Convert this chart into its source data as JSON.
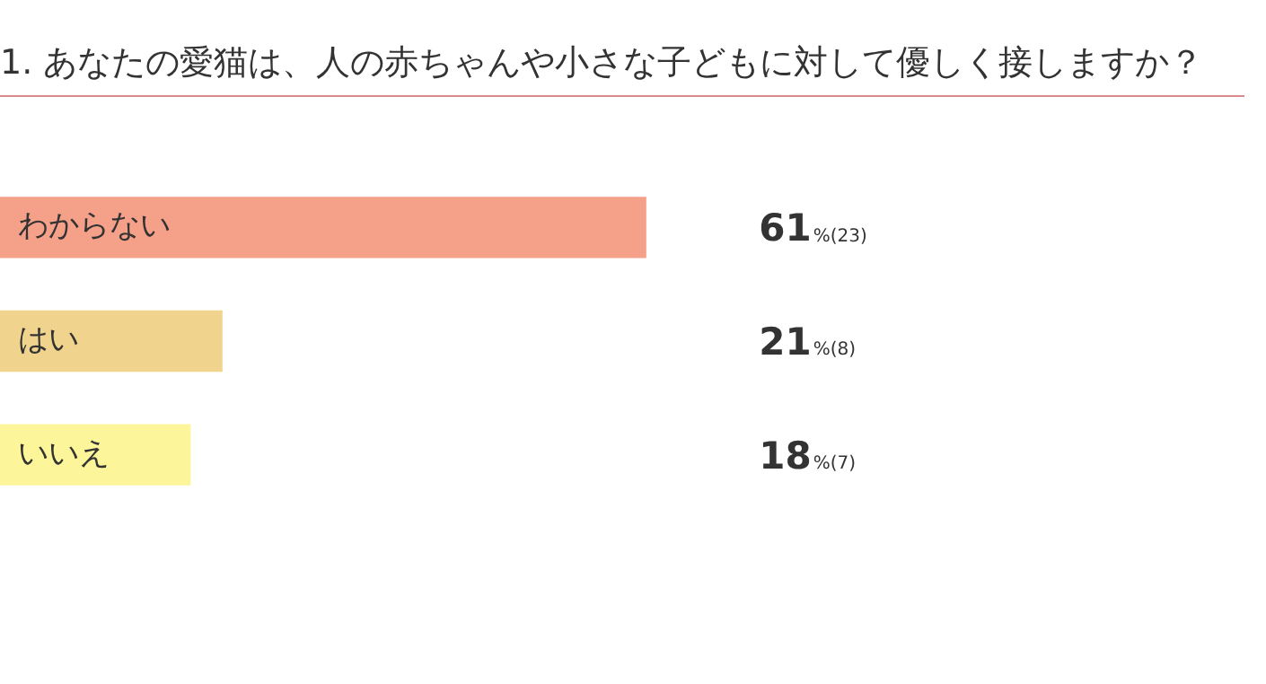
{
  "chart_data": {
    "type": "bar",
    "orientation": "horizontal",
    "title": "1. あなたの愛猫は、人の赤ちゃんや小さな子どもに対して優しく接しますか？",
    "categories": [
      "わからない",
      "はい",
      "いいえ"
    ],
    "values": [
      61,
      21,
      18
    ],
    "colors": [
      "#f5a088",
      "#f0d48e",
      "#fdf59a"
    ],
    "value_labels": [
      "61%(23)",
      "21%(8)",
      "18%(7)"
    ],
    "tick_labels": false,
    "legend": false
  }
}
